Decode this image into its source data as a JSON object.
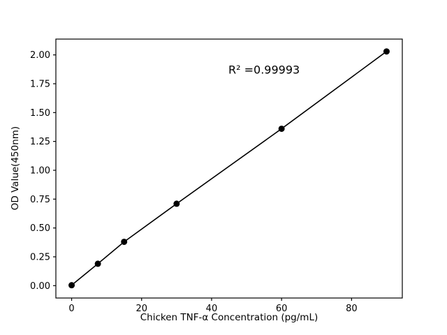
{
  "figure": {
    "background_color": "#ffffff"
  },
  "chart_data": {
    "type": "scatter",
    "title": "",
    "xlabel": "Chicken TNF-α Concentration (pg/mL)",
    "ylabel": "OD Value(450nm)",
    "x": [
      0,
      7.5,
      15,
      30,
      60,
      90
    ],
    "y": [
      0.004,
      0.19,
      0.38,
      0.71,
      1.36,
      2.03
    ],
    "line": true,
    "grid": false,
    "legend": "none",
    "xlim": [
      -4.5,
      94.5
    ],
    "ylim": [
      -0.107,
      2.137
    ],
    "xticks": [
      0,
      20,
      40,
      60,
      80
    ],
    "xtick_labels": [
      "0",
      "20",
      "40",
      "60",
      "80"
    ],
    "yticks": [
      0.0,
      0.25,
      0.5,
      0.75,
      1.0,
      1.25,
      1.5,
      1.75,
      2.0
    ],
    "ytick_labels": [
      "0.00",
      "0.25",
      "0.50",
      "0.75",
      "1.00",
      "1.25",
      "1.50",
      "1.75",
      "2.00"
    ],
    "annotation": {
      "text": "R² =0.99993",
      "x": 55,
      "y": 1.87
    },
    "line_color": "#000000",
    "marker_color": "#000000",
    "axis_color": "#000000",
    "marker_radius": 4.5,
    "line_width": 1.6
  }
}
